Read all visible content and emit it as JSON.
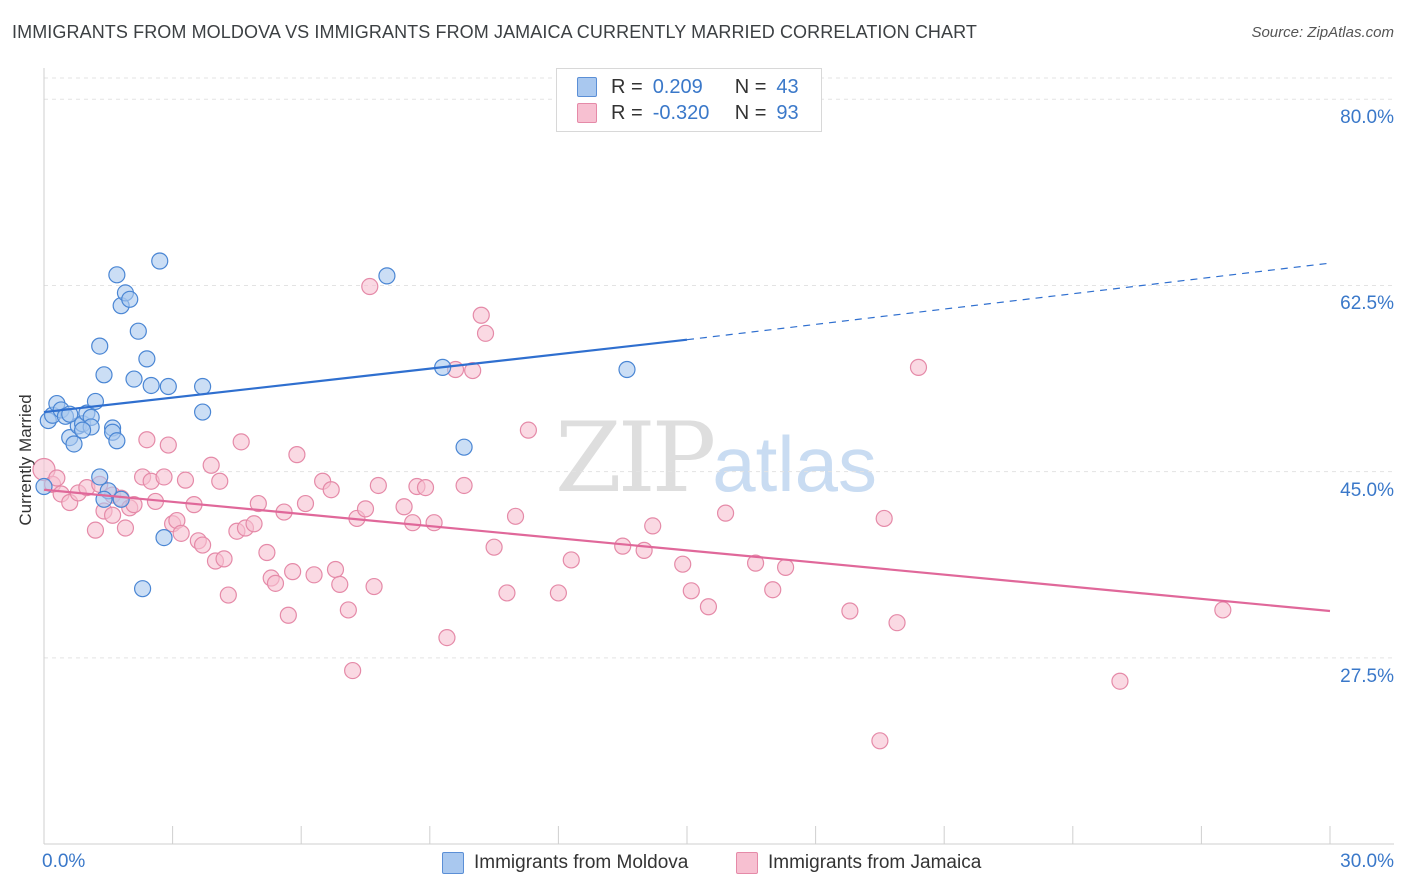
{
  "title": "IMMIGRANTS FROM MOLDOVA VS IMMIGRANTS FROM JAMAICA CURRENTLY MARRIED CORRELATION CHART",
  "source": "Source: ZipAtlas.com",
  "watermark": {
    "zip": "ZIP",
    "atlas": "atlas"
  },
  "legend": {
    "r_label": "R =",
    "n_label": "N =",
    "rows": [
      {
        "r": "0.209",
        "n": "43",
        "color": "#a9c8ef",
        "stroke": "#5b8fd6"
      },
      {
        "r": "-0.320",
        "n": "93",
        "color": "#f7c0d1",
        "stroke": "#e58aa8"
      }
    ]
  },
  "chart_data": {
    "type": "scatter",
    "ylabel": "Currently Married",
    "xlim": [
      0,
      30
    ],
    "ylim": [
      10,
      82
    ],
    "x_tick_labels": [
      "0.0%",
      "30.0%"
    ],
    "y_ticks": [
      {
        "value": 80,
        "label": "80.0%"
      },
      {
        "value": 62.5,
        "label": "62.5%"
      },
      {
        "value": 45,
        "label": "45.0%"
      },
      {
        "value": 27.5,
        "label": "27.5%"
      }
    ],
    "series": [
      {
        "name": "Immigrants from Moldova",
        "fill": "#a9c8ef",
        "stroke": "#4a86d4",
        "trend": {
          "x0": 0,
          "y0": 50.6,
          "x1": 15,
          "y1": 57.4,
          "x_dash_end": 30,
          "y_dash_end": 64.6,
          "color": "#2f6fcf"
        },
        "points": [
          [
            0.0,
            43.6
          ],
          [
            0.1,
            49.8
          ],
          [
            0.2,
            50.3
          ],
          [
            0.3,
            51.4
          ],
          [
            0.4,
            50.8
          ],
          [
            0.5,
            50.2
          ],
          [
            0.6,
            48.2
          ],
          [
            0.7,
            47.6
          ],
          [
            0.8,
            49.3
          ],
          [
            0.9,
            49.5
          ],
          [
            1.0,
            50.5
          ],
          [
            1.1,
            50.1
          ],
          [
            1.2,
            51.6
          ],
          [
            1.3,
            44.5
          ],
          [
            1.3,
            56.8
          ],
          [
            1.4,
            54.1
          ],
          [
            1.5,
            43.2
          ],
          [
            1.4,
            42.4
          ],
          [
            1.6,
            49.1
          ],
          [
            1.6,
            48.7
          ],
          [
            1.7,
            47.9
          ],
          [
            1.7,
            63.5
          ],
          [
            1.8,
            60.6
          ],
          [
            1.8,
            42.4
          ],
          [
            1.9,
            61.8
          ],
          [
            2.0,
            61.2
          ],
          [
            2.1,
            53.7
          ],
          [
            2.2,
            58.2
          ],
          [
            2.3,
            34.0
          ],
          [
            2.4,
            55.6
          ],
          [
            2.5,
            53.1
          ],
          [
            2.7,
            64.8
          ],
          [
            2.8,
            38.8
          ],
          [
            2.9,
            53.0
          ],
          [
            3.7,
            53.0
          ],
          [
            3.7,
            50.6
          ],
          [
            8.0,
            63.4
          ],
          [
            9.3,
            54.8
          ],
          [
            9.8,
            47.3
          ],
          [
            13.6,
            54.6
          ],
          [
            1.1,
            49.2
          ],
          [
            0.9,
            48.9
          ],
          [
            0.6,
            50.4
          ]
        ]
      },
      {
        "name": "Immigrants from Jamaica",
        "fill": "#f7c0d1",
        "stroke": "#e58aa8",
        "trend": {
          "x0": 0,
          "y0": 43.3,
          "x1": 30,
          "y1": 31.9,
          "color": "#e0689a"
        },
        "points": [
          [
            0.0,
            45.2
          ],
          [
            0.2,
            43.8
          ],
          [
            0.4,
            42.9
          ],
          [
            0.6,
            42.1
          ],
          [
            0.8,
            43.0
          ],
          [
            1.0,
            43.5
          ],
          [
            1.2,
            39.5
          ],
          [
            1.3,
            43.8
          ],
          [
            1.4,
            41.3
          ],
          [
            1.6,
            42.8
          ],
          [
            1.8,
            42.5
          ],
          [
            1.9,
            39.7
          ],
          [
            2.0,
            41.6
          ],
          [
            2.1,
            41.9
          ],
          [
            2.3,
            44.5
          ],
          [
            2.4,
            48.0
          ],
          [
            2.5,
            44.1
          ],
          [
            2.6,
            42.2
          ],
          [
            2.8,
            44.5
          ],
          [
            2.9,
            47.5
          ],
          [
            3.0,
            40.1
          ],
          [
            3.1,
            40.4
          ],
          [
            3.2,
            39.2
          ],
          [
            3.3,
            44.2
          ],
          [
            3.5,
            41.9
          ],
          [
            3.6,
            38.5
          ],
          [
            3.7,
            38.1
          ],
          [
            3.9,
            45.6
          ],
          [
            4.0,
            36.6
          ],
          [
            4.1,
            44.1
          ],
          [
            4.2,
            36.8
          ],
          [
            4.3,
            33.4
          ],
          [
            4.5,
            39.4
          ],
          [
            4.6,
            47.8
          ],
          [
            4.7,
            39.7
          ],
          [
            4.9,
            40.1
          ],
          [
            5.0,
            42.0
          ],
          [
            5.2,
            37.4
          ],
          [
            5.3,
            35.0
          ],
          [
            5.4,
            34.5
          ],
          [
            5.6,
            41.2
          ],
          [
            5.7,
            31.5
          ],
          [
            5.8,
            35.6
          ],
          [
            5.9,
            46.6
          ],
          [
            6.1,
            42.0
          ],
          [
            6.3,
            35.3
          ],
          [
            6.5,
            44.1
          ],
          [
            6.7,
            43.3
          ],
          [
            6.8,
            35.8
          ],
          [
            6.9,
            34.4
          ],
          [
            7.1,
            32.0
          ],
          [
            7.2,
            26.3
          ],
          [
            7.3,
            40.6
          ],
          [
            7.5,
            41.5
          ],
          [
            7.6,
            62.4
          ],
          [
            7.7,
            34.2
          ],
          [
            7.8,
            43.7
          ],
          [
            8.4,
            41.7
          ],
          [
            8.6,
            40.2
          ],
          [
            8.7,
            43.6
          ],
          [
            8.9,
            43.5
          ],
          [
            9.1,
            40.2
          ],
          [
            9.4,
            29.4
          ],
          [
            9.6,
            54.6
          ],
          [
            9.8,
            43.7
          ],
          [
            10.0,
            54.5
          ],
          [
            10.2,
            59.7
          ],
          [
            10.3,
            58.0
          ],
          [
            10.5,
            37.9
          ],
          [
            10.8,
            33.6
          ],
          [
            11.0,
            40.8
          ],
          [
            11.3,
            48.9
          ],
          [
            12.0,
            33.6
          ],
          [
            12.3,
            36.7
          ],
          [
            13.5,
            38.0
          ],
          [
            14.0,
            37.6
          ],
          [
            14.2,
            39.9
          ],
          [
            14.9,
            36.3
          ],
          [
            15.1,
            33.8
          ],
          [
            15.5,
            32.3
          ],
          [
            15.9,
            41.1
          ],
          [
            16.6,
            36.4
          ],
          [
            17.0,
            33.9
          ],
          [
            17.3,
            36.0
          ],
          [
            18.8,
            31.9
          ],
          [
            19.5,
            19.7
          ],
          [
            19.6,
            40.6
          ],
          [
            19.9,
            30.8
          ],
          [
            20.4,
            54.8
          ],
          [
            25.1,
            25.3
          ],
          [
            27.5,
            32.0
          ],
          [
            0.3,
            44.4
          ],
          [
            1.6,
            40.9
          ]
        ]
      }
    ]
  }
}
